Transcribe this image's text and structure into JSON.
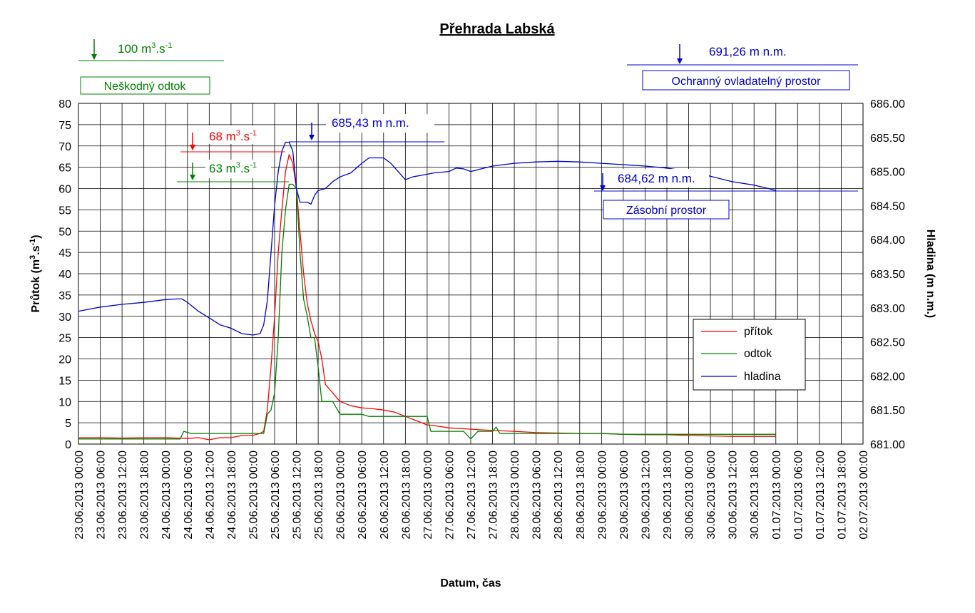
{
  "chart_data": {
    "type": "line",
    "title": "Přehrada Labská",
    "xlabel": "Datum, čas",
    "ylabel_base": "Průtok (m",
    "ylabel_sup1": "3",
    "ylabel_mid": ".s",
    "ylabel_sup2": "-1",
    "ylabel_end": ")",
    "y2label": "Hladina (m n.m.)",
    "ylim": [
      0,
      80
    ],
    "y2lim": [
      681.0,
      686.0
    ],
    "y_ticks": [
      "0",
      "5",
      "10",
      "15",
      "20",
      "25",
      "30",
      "35",
      "40",
      "45",
      "50",
      "55",
      "60",
      "65",
      "70",
      "75",
      "80"
    ],
    "y2_ticks": [
      "681.00",
      "681.50",
      "682.00",
      "682.50",
      "683.00",
      "683.50",
      "684.00",
      "684.50",
      "685.00",
      "685.50",
      "686.00"
    ],
    "x_ticks": [
      "23.06.2013 00:00",
      "23.06.2013 06:00",
      "23.06.2013 12:00",
      "23.06.2013 18:00",
      "24.06.2013 00:00",
      "24.06.2013 06:00",
      "24.06.2013 12:00",
      "24.06.2013 18:00",
      "25.06.2013 00:00",
      "25.06.2013 06:00",
      "25.06.2013 12:00",
      "25.06.2013 18:00",
      "26.06.2013 00:00",
      "26.06.2013 06:00",
      "26.06.2013 12:00",
      "26.06.2013 18:00",
      "27.06.2013 00:00",
      "27.06.2013 06:00",
      "27.06.2013 12:00",
      "27.06.2013 18:00",
      "28.06.2013 00:00",
      "28.06.2013 06:00",
      "28.06.2013 12:00",
      "28.06.2013 18:00",
      "29.06.2013 00:00",
      "29.06.2013 06:00",
      "29.06.2013 12:00",
      "29.06.2013 18:00",
      "30.06.2013 00:00",
      "30.06.2013 06:00",
      "30.06.2013 12:00",
      "30.06.2013 18:00",
      "01.07.2013 00:00",
      "01.07.2013 06:00",
      "01.07.2013 12:00",
      "01.07.2013 18:00",
      "02.07.2013 00:00"
    ],
    "grid": true,
    "legend_position": "bottom-right",
    "series": [
      {
        "name": "přítok",
        "axis": "left",
        "color": "#ff0000",
        "points": [
          [
            0,
            1.5
          ],
          [
            6,
            1.5
          ],
          [
            12,
            1.4
          ],
          [
            18,
            1.5
          ],
          [
            24,
            1.5
          ],
          [
            30,
            1.3
          ],
          [
            33,
            1.5
          ],
          [
            36,
            1.0
          ],
          [
            39,
            1.5
          ],
          [
            42,
            1.5
          ],
          [
            45,
            2.0
          ],
          [
            48,
            2.0
          ],
          [
            50,
            2.5
          ],
          [
            51,
            3.0
          ],
          [
            52,
            8
          ],
          [
            53,
            18
          ],
          [
            54,
            30
          ],
          [
            55,
            45
          ],
          [
            56,
            55
          ],
          [
            57,
            64
          ],
          [
            58,
            68
          ],
          [
            59,
            66
          ],
          [
            60,
            60
          ],
          [
            61,
            50
          ],
          [
            62,
            40
          ],
          [
            63,
            33
          ],
          [
            64,
            29
          ],
          [
            65,
            26
          ],
          [
            66,
            24
          ],
          [
            67,
            20
          ],
          [
            68,
            14
          ],
          [
            70,
            12
          ],
          [
            72,
            10
          ],
          [
            75,
            9
          ],
          [
            78,
            8.5
          ],
          [
            81,
            8.3
          ],
          [
            84,
            8
          ],
          [
            87,
            7.5
          ],
          [
            90,
            6.5
          ],
          [
            93,
            5.5
          ],
          [
            96,
            4.5
          ],
          [
            99,
            4.2
          ],
          [
            102,
            3.8
          ],
          [
            108,
            3.5
          ],
          [
            114,
            3.2
          ],
          [
            120,
            3.0
          ],
          [
            126,
            2.7
          ],
          [
            132,
            2.6
          ],
          [
            138,
            2.5
          ],
          [
            144,
            2.5
          ],
          [
            150,
            2.3
          ],
          [
            156,
            2.2
          ],
          [
            162,
            2.2
          ],
          [
            168,
            2.0
          ],
          [
            174,
            1.9
          ],
          [
            180,
            1.8
          ],
          [
            186,
            1.8
          ],
          [
            192,
            1.8
          ]
        ]
      },
      {
        "name": "odtok",
        "axis": "left",
        "color": "#008000",
        "points": [
          [
            0,
            1.2
          ],
          [
            6,
            1.2
          ],
          [
            12,
            1.2
          ],
          [
            18,
            1.2
          ],
          [
            24,
            1.2
          ],
          [
            28,
            1.2
          ],
          [
            29,
            3.0
          ],
          [
            31,
            2.5
          ],
          [
            36,
            2.5
          ],
          [
            42,
            2.5
          ],
          [
            48,
            2.5
          ],
          [
            51,
            2.5
          ],
          [
            52,
            7
          ],
          [
            53,
            8
          ],
          [
            54,
            12
          ],
          [
            55,
            25
          ],
          [
            56,
            45
          ],
          [
            57,
            55
          ],
          [
            58,
            61
          ],
          [
            59,
            61
          ],
          [
            60,
            60
          ],
          [
            61,
            45
          ],
          [
            62,
            34
          ],
          [
            63,
            30
          ],
          [
            64,
            25
          ],
          [
            65,
            25
          ],
          [
            66,
            18
          ],
          [
            67,
            10
          ],
          [
            68,
            10
          ],
          [
            70,
            10
          ],
          [
            72,
            7
          ],
          [
            78,
            7
          ],
          [
            80,
            6.5
          ],
          [
            84,
            6.5
          ],
          [
            96,
            6.5
          ],
          [
            97,
            3.0
          ],
          [
            102,
            3.0
          ],
          [
            106,
            3.0
          ],
          [
            108,
            1.2
          ],
          [
            110,
            3.0
          ],
          [
            114,
            3.0
          ],
          [
            115,
            4.0
          ],
          [
            116,
            2.5
          ],
          [
            120,
            2.5
          ],
          [
            132,
            2.5
          ],
          [
            144,
            2.5
          ],
          [
            150,
            2.3
          ],
          [
            156,
            2.3
          ],
          [
            168,
            2.3
          ],
          [
            180,
            2.3
          ],
          [
            192,
            2.3
          ]
        ]
      },
      {
        "name": "hladina",
        "axis": "right",
        "color": "#0000cc",
        "points": [
          [
            0,
            682.95
          ],
          [
            6,
            683.01
          ],
          [
            12,
            683.05
          ],
          [
            18,
            683.08
          ],
          [
            24,
            683.12
          ],
          [
            27,
            683.13
          ],
          [
            28.5,
            683.13
          ],
          [
            30,
            683.08
          ],
          [
            33,
            682.95
          ],
          [
            36,
            682.85
          ],
          [
            39,
            682.75
          ],
          [
            42,
            682.7
          ],
          [
            45,
            682.62
          ],
          [
            48,
            682.6
          ],
          [
            50,
            682.62
          ],
          [
            51,
            682.75
          ],
          [
            52,
            683.1
          ],
          [
            53,
            683.8
          ],
          [
            54,
            684.5
          ],
          [
            55,
            685.0
          ],
          [
            56,
            685.3
          ],
          [
            57,
            685.43
          ],
          [
            58,
            685.43
          ],
          [
            59,
            685.3
          ],
          [
            60,
            684.75
          ],
          [
            61,
            684.55
          ],
          [
            62,
            684.55
          ],
          [
            63,
            684.55
          ],
          [
            64,
            684.52
          ],
          [
            65,
            684.65
          ],
          [
            66,
            684.72
          ],
          [
            68,
            684.75
          ],
          [
            70,
            684.85
          ],
          [
            72,
            684.92
          ],
          [
            75,
            684.98
          ],
          [
            78,
            685.12
          ],
          [
            80,
            685.2
          ],
          [
            82,
            685.2
          ],
          [
            84,
            685.2
          ],
          [
            86,
            685.12
          ],
          [
            88,
            685.0
          ],
          [
            90,
            684.88
          ],
          [
            92,
            684.92
          ],
          [
            95,
            684.95
          ],
          [
            98,
            684.98
          ],
          [
            102,
            685.0
          ],
          [
            104,
            685.05
          ],
          [
            106,
            685.04
          ],
          [
            108,
            685.0
          ],
          [
            111,
            685.04
          ],
          [
            114,
            685.08
          ],
          [
            117,
            685.1
          ],
          [
            120,
            685.12
          ],
          [
            126,
            685.14
          ],
          [
            132,
            685.15
          ],
          [
            138,
            685.14
          ],
          [
            144,
            685.12
          ],
          [
            150,
            685.1
          ],
          [
            156,
            685.08
          ],
          [
            162,
            685.05
          ],
          [
            168,
            685.0
          ],
          [
            174,
            684.93
          ],
          [
            180,
            684.85
          ],
          [
            186,
            684.8
          ],
          [
            190,
            684.75
          ],
          [
            192,
            684.72
          ]
        ]
      }
    ],
    "annotations": {
      "neskodny_value": "100 m",
      "neskodny_sup": "3",
      "neskodny_unit": ".s",
      "neskodny_sup2": "-1",
      "neskodny_label": "Neškodný odtok",
      "ochranny_value": "691,26 m n.m.",
      "ochranny_label": "Ochranný ovladatelný prostor",
      "pritok_max_value": "68 m",
      "pritok_max_sup": "3",
      "pritok_max_unit": ".s",
      "pritok_max_sup2": "-1",
      "odtok_max_value": "63 m",
      "odtok_max_sup": "3",
      "odtok_max_unit": ".s",
      "odtok_max_sup2": "-1",
      "hladina_max_value": "685,43 m n.m.",
      "zasobni_value": "684,62 m n.m.",
      "zasobni_label": "Zásobní prostor"
    },
    "colors": {
      "red": "#ff0000",
      "green": "#008000",
      "blue": "#0000cc"
    }
  }
}
